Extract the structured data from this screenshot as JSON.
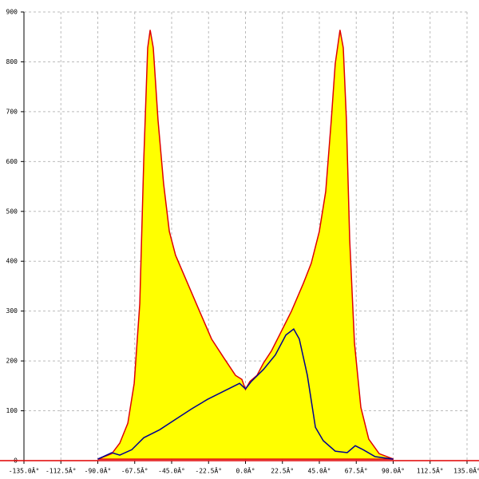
{
  "chart_data": {
    "type": "area",
    "xlim": [
      -135,
      135
    ],
    "ylim": [
      0,
      900
    ],
    "xticks": [
      {
        "value": -135,
        "label": "-135.0Â°"
      },
      {
        "value": -112.5,
        "label": "-112.5Â°"
      },
      {
        "value": -90,
        "label": "-90.0Â°"
      },
      {
        "value": -67.5,
        "label": "-67.5Â°"
      },
      {
        "value": -45,
        "label": "-45.0Â°"
      },
      {
        "value": -22.5,
        "label": "-22.5Â°"
      },
      {
        "value": 0,
        "label": "0.0Â°"
      },
      {
        "value": 22.5,
        "label": "22.5Â°"
      },
      {
        "value": 45,
        "label": "45.0Â°"
      },
      {
        "value": 67.5,
        "label": "67.5Â°"
      },
      {
        "value": 90,
        "label": "90.0Â°"
      },
      {
        "value": 112.5,
        "label": "112.5Â°"
      },
      {
        "value": 135,
        "label": "135.0Â°"
      }
    ],
    "yticks": [
      0,
      100,
      200,
      300,
      400,
      500,
      600,
      700,
      800,
      900
    ],
    "grid": true,
    "series": [
      {
        "kind": "area",
        "color": "#e00000",
        "fill": "#ffff00",
        "x": [
          -90,
          -81.5,
          -76.6,
          -71.7,
          -67.8,
          -64.4,
          -62,
          -59.6,
          -58.1,
          -56.2,
          -53.3,
          -49.9,
          -46.4,
          -42.6,
          -35.3,
          -28,
          -20.7,
          -13.4,
          -6.1,
          -2.2,
          0,
          2.7,
          7,
          11,
          15.8,
          20.7,
          28,
          35.3,
          40.1,
          45,
          48.9,
          52.3,
          54.7,
          57.6,
          59.6,
          61.5,
          63.5,
          66.4,
          70.3,
          75.1,
          81.5,
          90.2
        ],
        "values": [
          3,
          14,
          35,
          75,
          155,
          315,
          604,
          828,
          864,
          828,
          684,
          556,
          460,
          412,
          356,
          300,
          244,
          207,
          171,
          163,
          143,
          159,
          171,
          196,
          220,
          252,
          300,
          356,
          396,
          460,
          540,
          684,
          796,
          864,
          828,
          684,
          444,
          236,
          107,
          43,
          14,
          3
        ]
      },
      {
        "kind": "line",
        "color": "#000090",
        "x": [
          -90,
          -81.5,
          -76.6,
          -69.3,
          -62,
          -52.3,
          -42.6,
          -32.8,
          -23.1,
          -13.4,
          -3.6,
          0,
          3.6,
          11,
          18.2,
          24.6,
          29.4,
          32.8,
          37.7,
          42.6,
          47.4,
          54.7,
          62,
          66.9,
          71.7,
          79,
          90
        ],
        "values": [
          3,
          16,
          11,
          22,
          46,
          62,
          83,
          104,
          123,
          139,
          155,
          144,
          159,
          183,
          212,
          252,
          264,
          244,
          171,
          67,
          40,
          19,
          16,
          30,
          22,
          8,
          3
        ]
      }
    ]
  }
}
